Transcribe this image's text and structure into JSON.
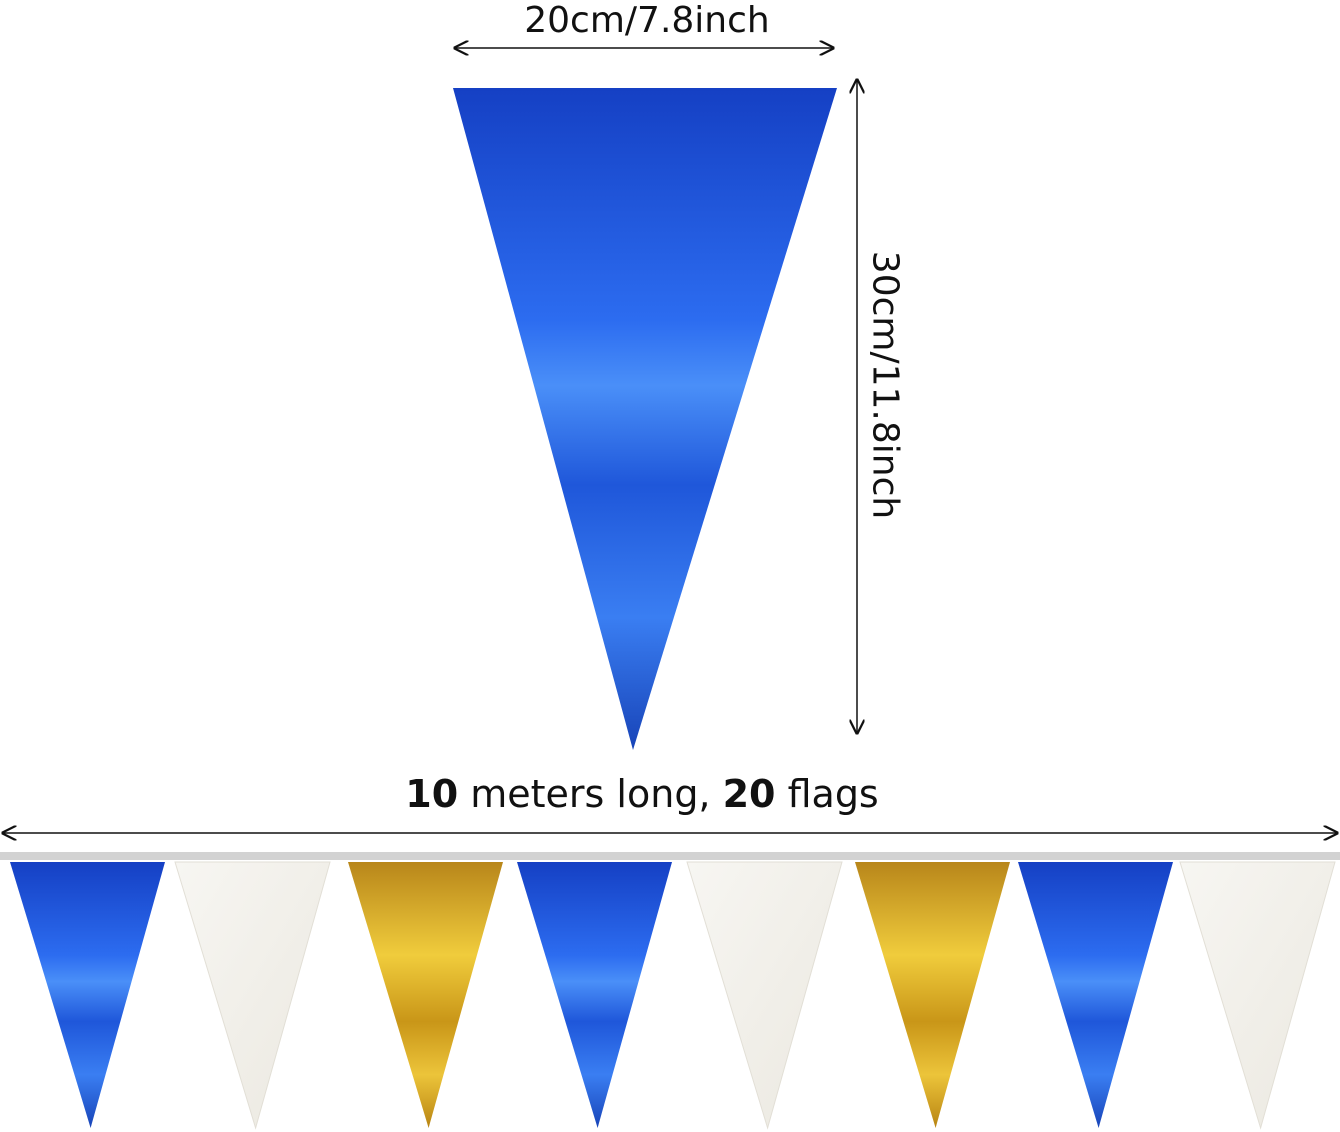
{
  "dimensions": {
    "width_label": "20cm/7.8inch",
    "height_label": "30cm/11.8inch"
  },
  "banner": {
    "length_number": "10",
    "length_text": "meters long,",
    "flags_number": "20",
    "flags_text": "flags",
    "flag_colors": [
      "blue",
      "white",
      "gold",
      "blue",
      "white",
      "gold",
      "blue",
      "white"
    ]
  },
  "colors": {
    "blue": "#1a4fd0",
    "white": "#f3f1ec",
    "gold": "#d9aa1c",
    "string": "#cfcfcf"
  }
}
